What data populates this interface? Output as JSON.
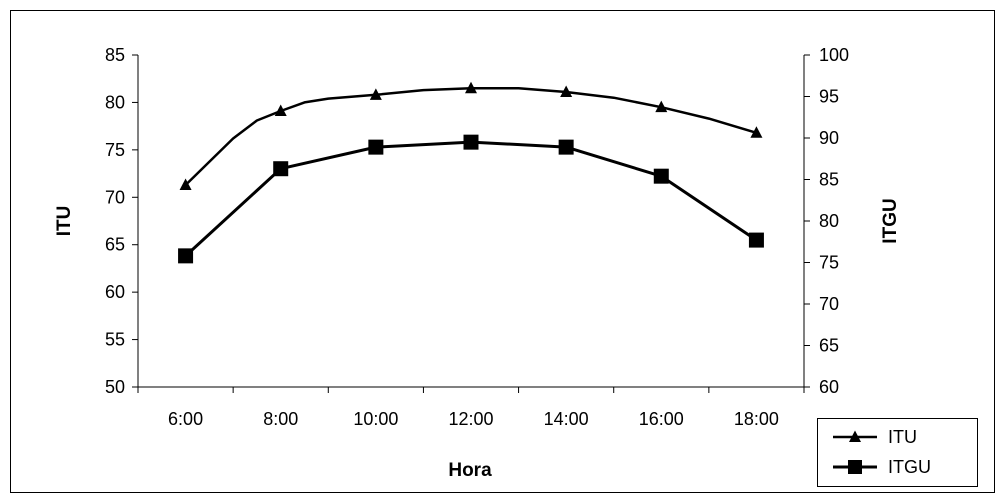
{
  "chart_data": {
    "type": "line",
    "xlabel": "Hora",
    "ylabel_left": "ITU",
    "ylabel_right": "ITGU",
    "x_ticks": [
      "6:00",
      "8:00",
      "10:00",
      "12:00",
      "14:00",
      "16:00",
      "18:00"
    ],
    "x_range": [
      5,
      19
    ],
    "ylim_left": [
      50,
      85
    ],
    "y_ticks_left": [
      50,
      55,
      60,
      65,
      70,
      75,
      80,
      85
    ],
    "ylim_right": [
      60,
      100
    ],
    "y_ticks_right": [
      60,
      65,
      70,
      75,
      80,
      85,
      90,
      95,
      100
    ],
    "grid": false,
    "legend_position": "bottom-right",
    "series": [
      {
        "name": "ITU",
        "axis": "left",
        "marker": "triangle",
        "curve": [
          {
            "x": 6,
            "y": 71.3
          },
          {
            "x": 7,
            "y": 76.2
          },
          {
            "x": 7.5,
            "y": 78.1
          },
          {
            "x": 8,
            "y": 79.1
          },
          {
            "x": 8.5,
            "y": 80.0
          },
          {
            "x": 9,
            "y": 80.4
          },
          {
            "x": 10,
            "y": 80.8
          },
          {
            "x": 11,
            "y": 81.3
          },
          {
            "x": 12,
            "y": 81.5
          },
          {
            "x": 13,
            "y": 81.5
          },
          {
            "x": 14,
            "y": 81.1
          },
          {
            "x": 15,
            "y": 80.5
          },
          {
            "x": 16,
            "y": 79.5
          },
          {
            "x": 17,
            "y": 78.3
          },
          {
            "x": 18,
            "y": 76.8
          }
        ],
        "markers": [
          {
            "x": 6,
            "y": 71.3
          },
          {
            "x": 8,
            "y": 79.1
          },
          {
            "x": 10,
            "y": 80.8
          },
          {
            "x": 12,
            "y": 81.5
          },
          {
            "x": 14,
            "y": 81.1
          },
          {
            "x": 16,
            "y": 79.5
          },
          {
            "x": 18,
            "y": 76.8
          }
        ]
      },
      {
        "name": "ITGU",
        "axis": "right",
        "marker": "square",
        "curve": [
          {
            "x": 6,
            "y": 75.8
          },
          {
            "x": 8,
            "y": 86.3
          },
          {
            "x": 10,
            "y": 88.9
          },
          {
            "x": 12,
            "y": 89.5
          },
          {
            "x": 14,
            "y": 88.9
          },
          {
            "x": 16,
            "y": 85.4
          },
          {
            "x": 18,
            "y": 77.7
          }
        ],
        "markers": [
          {
            "x": 6,
            "y": 75.8
          },
          {
            "x": 8,
            "y": 86.3
          },
          {
            "x": 10,
            "y": 88.9
          },
          {
            "x": 12,
            "y": 89.5
          },
          {
            "x": 14,
            "y": 88.9
          },
          {
            "x": 16,
            "y": 85.4
          },
          {
            "x": 18,
            "y": 77.7
          }
        ]
      }
    ],
    "colors": {
      "line": "#000000",
      "background": "#ffffff",
      "frame": "#000000"
    }
  }
}
